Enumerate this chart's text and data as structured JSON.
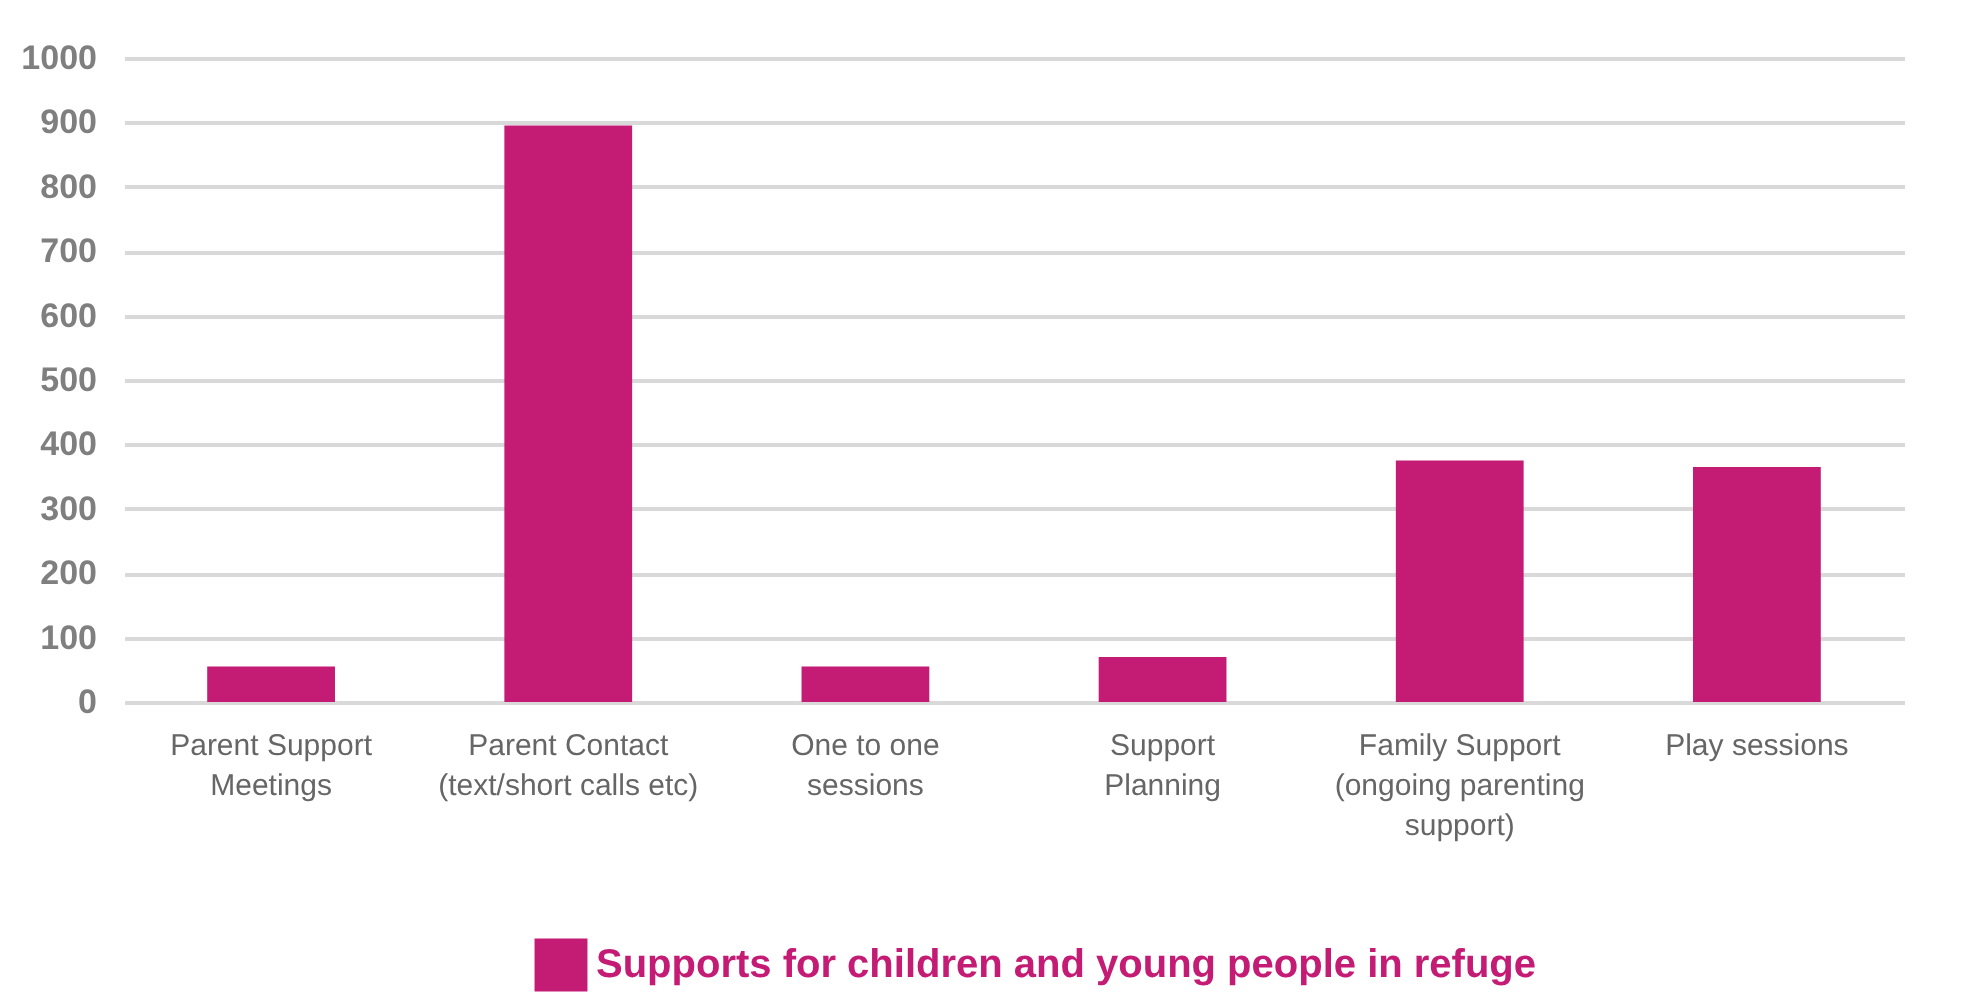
{
  "chart_data": {
    "type": "bar",
    "categories": [
      "Parent Support Meetings",
      "Parent Contact (text/short calls etc)",
      "One to one sessions",
      "Support Planning",
      "Family Support (ongoing parenting support)",
      "Play sessions"
    ],
    "series": [
      {
        "name": "Supports for children and young people in refuge",
        "color": "#c41c74",
        "values": [
          55,
          895,
          55,
          70,
          375,
          365
        ]
      }
    ],
    "ylim": [
      0,
      1000
    ],
    "yticks": [
      0,
      100,
      200,
      300,
      400,
      500,
      600,
      700,
      800,
      900,
      1000
    ],
    "grid": "y",
    "legend": "bottom"
  }
}
